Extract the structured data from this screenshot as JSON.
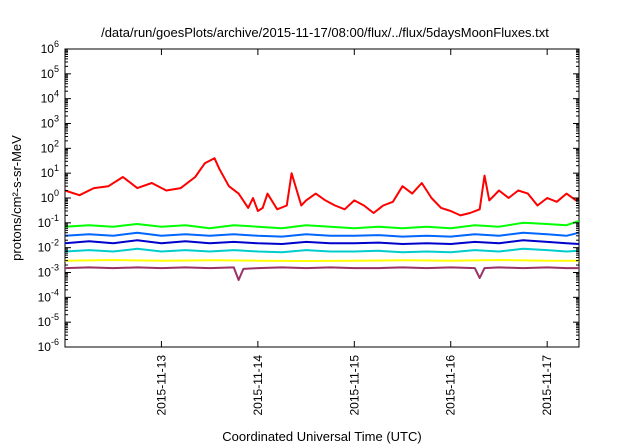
{
  "chart_data": {
    "type": "line",
    "title": "/data/run/goesPlots/archive/2015-11-17/08:00/flux/../flux/5daysMoonFluxes.txt",
    "xlabel": "Coordinated Universal Time (UTC)",
    "ylabel": "protons/cm²-s-sr-MeV",
    "yscale": "log",
    "ylim": [
      1e-06,
      1000000.0
    ],
    "xlim": [
      0,
      5.33
    ],
    "x_unit": "days from 2015-11-12 00:00 UTC",
    "y_tick_exponents": [
      6,
      5,
      4,
      3,
      2,
      1,
      0,
      -1,
      -2,
      -3,
      -4,
      -5,
      -6
    ],
    "x_ticks": [
      {
        "x": 1,
        "label": "2015-11-13"
      },
      {
        "x": 2,
        "label": "2015-11-14"
      },
      {
        "x": 3,
        "label": "2015-11-15"
      },
      {
        "x": 4,
        "label": "2015-11-16"
      },
      {
        "x": 5,
        "label": "2015-11-17"
      }
    ],
    "grid": false,
    "legend": "none",
    "series": [
      {
        "color": "#ff0000",
        "x": [
          0,
          0.15,
          0.3,
          0.45,
          0.6,
          0.75,
          0.9,
          1.05,
          1.2,
          1.35,
          1.45,
          1.55,
          1.6,
          1.7,
          1.8,
          1.9,
          1.95,
          2.0,
          2.05,
          2.1,
          2.2,
          2.3,
          2.35,
          2.45,
          2.5,
          2.6,
          2.7,
          2.8,
          2.9,
          3.0,
          3.1,
          3.2,
          3.3,
          3.4,
          3.5,
          3.6,
          3.7,
          3.8,
          3.9,
          4.0,
          4.1,
          4.2,
          4.3,
          4.35,
          4.4,
          4.5,
          4.6,
          4.7,
          4.8,
          4.9,
          5.0,
          5.1,
          5.2,
          5.3,
          5.33
        ],
        "y": [
          2.0,
          1.3,
          2.5,
          3.0,
          7.0,
          2.5,
          4.0,
          2.0,
          2.5,
          7.0,
          25,
          40,
          15,
          3.0,
          1.5,
          0.4,
          1.0,
          0.3,
          0.4,
          1.5,
          0.35,
          0.5,
          10,
          0.5,
          0.8,
          1.5,
          0.8,
          0.5,
          0.35,
          0.8,
          0.5,
          0.25,
          0.5,
          0.7,
          3.0,
          1.5,
          4.0,
          1.0,
          0.4,
          0.3,
          0.2,
          0.25,
          0.35,
          8.0,
          0.8,
          2.0,
          1.0,
          2.0,
          1.5,
          0.5,
          1.0,
          0.7,
          1.5,
          0.8,
          1.0
        ]
      },
      {
        "color": "#00ff00",
        "x": [
          0,
          0.25,
          0.5,
          0.75,
          1.0,
          1.25,
          1.5,
          1.75,
          2.0,
          2.25,
          2.5,
          2.75,
          3.0,
          3.25,
          3.5,
          3.75,
          4.0,
          4.25,
          4.5,
          4.75,
          5.0,
          5.2,
          5.33
        ],
        "y": [
          0.07,
          0.08,
          0.07,
          0.09,
          0.07,
          0.08,
          0.06,
          0.08,
          0.07,
          0.06,
          0.08,
          0.07,
          0.06,
          0.07,
          0.06,
          0.07,
          0.06,
          0.08,
          0.07,
          0.1,
          0.09,
          0.08,
          0.12
        ]
      },
      {
        "color": "#0066ff",
        "x": [
          0,
          0.25,
          0.5,
          0.75,
          1.0,
          1.25,
          1.5,
          1.75,
          2.0,
          2.25,
          2.5,
          2.75,
          3.0,
          3.25,
          3.5,
          3.75,
          4.0,
          4.25,
          4.5,
          4.75,
          5.0,
          5.2,
          5.33
        ],
        "y": [
          0.03,
          0.035,
          0.03,
          0.04,
          0.03,
          0.035,
          0.03,
          0.035,
          0.03,
          0.028,
          0.035,
          0.03,
          0.03,
          0.032,
          0.028,
          0.03,
          0.028,
          0.035,
          0.03,
          0.04,
          0.035,
          0.03,
          0.04
        ]
      },
      {
        "color": "#0000cc",
        "x": [
          0,
          0.25,
          0.5,
          0.75,
          1.0,
          1.25,
          1.5,
          1.75,
          2.0,
          2.25,
          2.5,
          2.75,
          3.0,
          3.25,
          3.5,
          3.75,
          4.0,
          4.25,
          4.5,
          4.75,
          5.0,
          5.2,
          5.33
        ],
        "y": [
          0.015,
          0.018,
          0.015,
          0.02,
          0.015,
          0.018,
          0.015,
          0.017,
          0.015,
          0.014,
          0.017,
          0.015,
          0.015,
          0.016,
          0.014,
          0.015,
          0.014,
          0.017,
          0.015,
          0.02,
          0.017,
          0.015,
          0.014
        ]
      },
      {
        "color": "#00cccc",
        "x": [
          0,
          0.25,
          0.5,
          0.75,
          1.0,
          1.25,
          1.5,
          1.75,
          2.0,
          2.25,
          2.5,
          2.75,
          3.0,
          3.25,
          3.5,
          3.75,
          4.0,
          4.25,
          4.5,
          4.75,
          5.0,
          5.2,
          5.33
        ],
        "y": [
          0.007,
          0.008,
          0.007,
          0.009,
          0.007,
          0.008,
          0.007,
          0.008,
          0.007,
          0.0065,
          0.008,
          0.007,
          0.007,
          0.0075,
          0.0065,
          0.007,
          0.0065,
          0.008,
          0.007,
          0.009,
          0.008,
          0.007,
          0.0075
        ]
      },
      {
        "color": "#ffff00",
        "x": [
          0,
          0.5,
          1.0,
          1.5,
          2.0,
          2.5,
          3.0,
          3.5,
          4.0,
          4.5,
          5.0,
          5.33
        ],
        "y": [
          0.003,
          0.0032,
          0.003,
          0.0031,
          0.003,
          0.0029,
          0.003,
          0.0031,
          0.003,
          0.0032,
          0.003,
          0.003
        ]
      },
      {
        "color": "#993366",
        "x": [
          0,
          0.25,
          0.5,
          0.75,
          1.0,
          1.25,
          1.5,
          1.75,
          1.8,
          1.85,
          2.0,
          2.25,
          2.5,
          2.75,
          3.0,
          3.25,
          3.5,
          3.75,
          4.0,
          4.25,
          4.3,
          4.35,
          4.5,
          4.75,
          5.0,
          5.2,
          5.33
        ],
        "y": [
          0.0015,
          0.0016,
          0.0015,
          0.0016,
          0.0015,
          0.0016,
          0.0015,
          0.0016,
          0.0005,
          0.0014,
          0.0015,
          0.0016,
          0.0015,
          0.0016,
          0.0015,
          0.0015,
          0.0016,
          0.0015,
          0.0016,
          0.0015,
          0.0006,
          0.0015,
          0.0016,
          0.0015,
          0.0016,
          0.0015,
          0.0015
        ]
      }
    ]
  }
}
